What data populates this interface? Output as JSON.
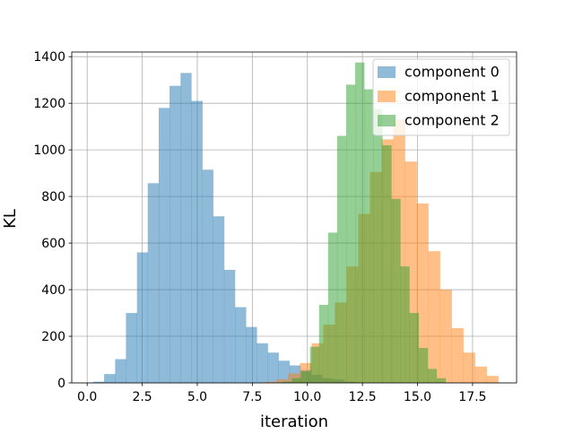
{
  "chart_data": {
    "type": "histogram",
    "title": "",
    "xlabel": "iteration",
    "ylabel": "KL",
    "xlim": [
      -0.7,
      19.5
    ],
    "ylim": [
      0,
      1420
    ],
    "x_ticks": [
      "0.0",
      "2.5",
      "5.0",
      "7.5",
      "10.0",
      "12.5",
      "15.0",
      "17.5"
    ],
    "y_ticks": [
      "0",
      "200",
      "400",
      "600",
      "800",
      "1000",
      "1200",
      "1400"
    ],
    "grid": true,
    "legend_position": "top-right",
    "series": [
      {
        "name": "component 0",
        "color": "#1f77b4",
        "opacity": 0.5,
        "bin_edges": [
          0.28,
          0.77,
          1.27,
          1.76,
          2.26,
          2.75,
          3.25,
          3.74,
          4.24,
          4.73,
          5.23,
          5.72,
          6.22,
          6.71,
          7.21,
          7.7,
          8.2,
          8.69,
          9.19,
          9.68,
          10.18,
          10.67,
          11.17,
          11.66,
          12.16
        ],
        "counts": [
          5,
          38,
          102,
          300,
          560,
          857,
          1180,
          1275,
          1330,
          1210,
          915,
          715,
          485,
          325,
          240,
          170,
          130,
          95,
          75,
          55,
          35,
          20,
          15,
          5
        ]
      },
      {
        "name": "component 1",
        "color": "#ff7f0e",
        "opacity": 0.5,
        "bin_edges": [
          8.07,
          8.6,
          9.13,
          9.66,
          10.19,
          10.72,
          11.25,
          11.78,
          12.31,
          12.84,
          13.37,
          13.9,
          14.43,
          14.96,
          15.49,
          16.02,
          16.55,
          17.08,
          17.61,
          18.14,
          18.67
        ],
        "counts": [
          5,
          15,
          40,
          85,
          170,
          250,
          345,
          500,
          725,
          905,
          1045,
          1130,
          950,
          770,
          565,
          400,
          235,
          130,
          70,
          30
        ]
      },
      {
        "name": "component 2",
        "color": "#2ca02c",
        "opacity": 0.5,
        "bin_edges": [
          8.89,
          9.3,
          9.71,
          10.12,
          10.53,
          10.94,
          11.35,
          11.76,
          12.17,
          12.58,
          12.99,
          13.4,
          13.81,
          14.22,
          14.63,
          15.05,
          15.46,
          15.87,
          16.28
        ],
        "counts": [
          5,
          20,
          50,
          155,
          335,
          645,
          1060,
          1280,
          1375,
          1260,
          1175,
          1020,
          790,
          500,
          300,
          150,
          60,
          20
        ]
      }
    ]
  }
}
